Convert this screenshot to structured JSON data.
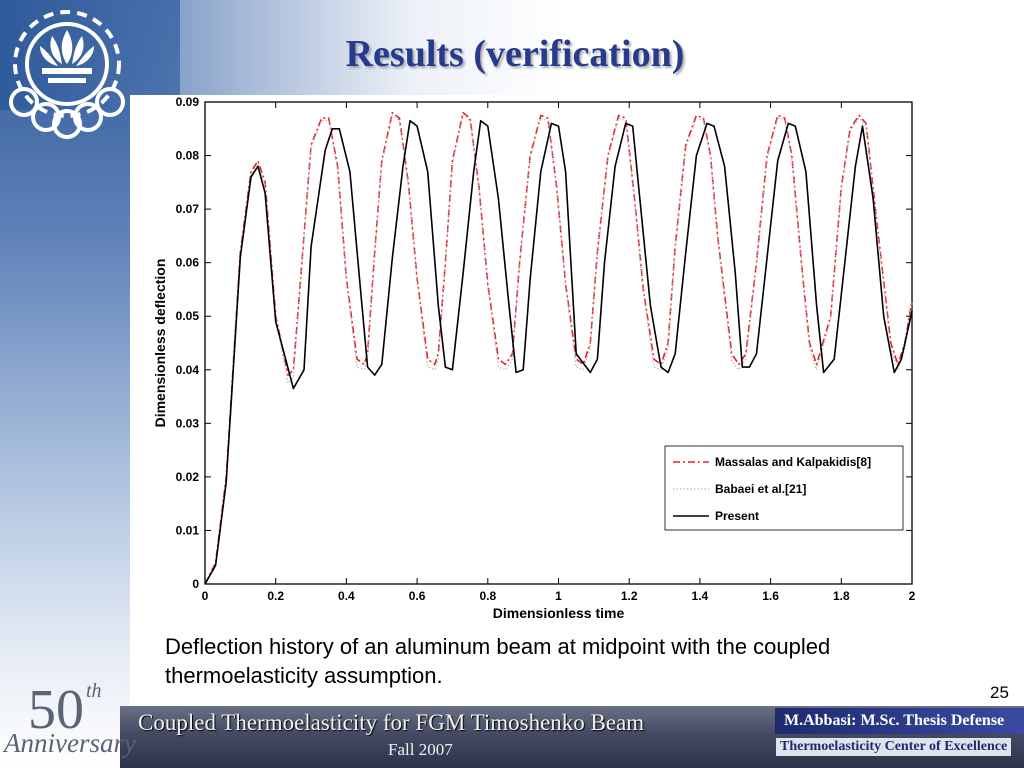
{
  "slide": {
    "title": "Results (verification)",
    "caption": "Deflection history of an aluminum beam at midpoint with the coupled thermoelasticity assumption.",
    "page_number": "25",
    "footer": {
      "title": "Coupled Thermoelasticity for FGM Timoshenko Beam",
      "date": "Fall 2007",
      "author": "M.Abbasi: M.Sc. Thesis Defense",
      "center": "Thermoelasticity Center of Excellence"
    },
    "anniversary": {
      "number": "50",
      "suffix": "th",
      "word": "Anniversary"
    },
    "colors": {
      "title": "#283a8c",
      "footer_band": "#3a4158",
      "accent": "#1f2a6e"
    }
  },
  "chart_data": {
    "type": "line",
    "title": "",
    "xlabel": "Dimensionless time",
    "ylabel": "Dimensionless deflection",
    "xlim": [
      0,
      2
    ],
    "ylim": [
      0,
      0.09
    ],
    "xticks": [
      0,
      0.2,
      0.4,
      0.6,
      0.8,
      1,
      1.2,
      1.4,
      1.6,
      1.8,
      2
    ],
    "xtick_labels": [
      "0",
      "0.2",
      "0.4",
      "0.6",
      "0.8",
      "1",
      "1.2",
      "1.4",
      "1.6",
      "1.8",
      "2"
    ],
    "yticks": [
      0,
      0.01,
      0.02,
      0.03,
      0.04,
      0.05,
      0.06,
      0.07,
      0.08,
      0.09
    ],
    "ytick_labels": [
      "0",
      "0.01",
      "0.02",
      "0.03",
      "0.04",
      "0.05",
      "0.06",
      "0.07",
      "0.08",
      "0.09"
    ],
    "grid": false,
    "legend_position": "bottom-right",
    "series": [
      {
        "name": "Massalas and Kalpakidis[8]",
        "style": "dash-dot",
        "color": "#e8202a",
        "x": [
          0,
          0.03,
          0.06,
          0.1,
          0.13,
          0.15,
          0.17,
          0.2,
          0.235,
          0.25,
          0.28,
          0.3,
          0.33,
          0.35,
          0.375,
          0.4,
          0.43,
          0.45,
          0.46,
          0.48,
          0.5,
          0.53,
          0.55,
          0.575,
          0.6,
          0.63,
          0.65,
          0.66,
          0.68,
          0.7,
          0.73,
          0.75,
          0.775,
          0.8,
          0.83,
          0.85,
          0.87,
          0.89,
          0.92,
          0.95,
          0.97,
          0.995,
          1.02,
          1.05,
          1.07,
          1.09,
          1.11,
          1.14,
          1.17,
          1.19,
          1.215,
          1.24,
          1.27,
          1.29,
          1.31,
          1.33,
          1.36,
          1.39,
          1.41,
          1.43,
          1.45,
          1.49,
          1.51,
          1.53,
          1.56,
          1.59,
          1.62,
          1.64,
          1.66,
          1.69,
          1.71,
          1.73,
          1.77,
          1.8,
          1.825,
          1.85,
          1.87,
          1.9,
          1.94,
          1.96,
          1.98,
          2
        ],
        "y": [
          0,
          0.004,
          0.02,
          0.062,
          0.077,
          0.079,
          0.075,
          0.05,
          0.039,
          0.04,
          0.065,
          0.082,
          0.087,
          0.087,
          0.078,
          0.057,
          0.042,
          0.041,
          0.043,
          0.062,
          0.079,
          0.088,
          0.087,
          0.075,
          0.057,
          0.042,
          0.041,
          0.043,
          0.06,
          0.079,
          0.088,
          0.087,
          0.074,
          0.056,
          0.042,
          0.041,
          0.043,
          0.06,
          0.08,
          0.0875,
          0.087,
          0.074,
          0.056,
          0.042,
          0.041,
          0.045,
          0.062,
          0.08,
          0.0875,
          0.087,
          0.072,
          0.055,
          0.042,
          0.041,
          0.045,
          0.063,
          0.082,
          0.0875,
          0.087,
          0.08,
          0.065,
          0.043,
          0.041,
          0.043,
          0.06,
          0.08,
          0.0875,
          0.087,
          0.08,
          0.058,
          0.045,
          0.041,
          0.05,
          0.074,
          0.085,
          0.0875,
          0.086,
          0.068,
          0.045,
          0.041,
          0.045,
          0.053
        ]
      },
      {
        "name": "Babaei et al.[21]",
        "style": "dotted",
        "color": "#b8b8b8",
        "x": [
          0,
          0.03,
          0.06,
          0.1,
          0.13,
          0.15,
          0.17,
          0.2,
          0.235,
          0.25,
          0.28,
          0.3,
          0.33,
          0.35,
          0.375,
          0.4,
          0.43,
          0.45,
          0.46,
          0.48,
          0.5,
          0.53,
          0.55,
          0.575,
          0.6,
          0.63,
          0.65,
          0.66,
          0.68,
          0.7,
          0.73,
          0.75,
          0.775,
          0.8,
          0.83,
          0.85,
          0.87,
          0.89,
          0.92,
          0.95,
          0.97,
          0.995,
          1.02,
          1.05,
          1.07,
          1.09,
          1.11,
          1.14,
          1.17,
          1.19,
          1.215,
          1.24,
          1.27,
          1.29,
          1.31,
          1.33,
          1.36,
          1.39,
          1.41,
          1.43,
          1.45,
          1.49,
          1.51,
          1.53,
          1.56,
          1.59,
          1.62,
          1.64,
          1.66,
          1.69,
          1.71,
          1.73,
          1.77,
          1.8,
          1.825,
          1.85,
          1.87,
          1.9,
          1.94,
          1.96,
          1.98,
          2
        ],
        "y": [
          0,
          0.0038,
          0.0195,
          0.0615,
          0.0765,
          0.0785,
          0.0745,
          0.0495,
          0.0375,
          0.0385,
          0.0645,
          0.0815,
          0.0865,
          0.0865,
          0.0775,
          0.0565,
          0.0405,
          0.04,
          0.042,
          0.0615,
          0.0785,
          0.0875,
          0.0865,
          0.0745,
          0.0565,
          0.0405,
          0.04,
          0.042,
          0.0595,
          0.0785,
          0.0875,
          0.0865,
          0.0735,
          0.0555,
          0.0405,
          0.04,
          0.042,
          0.0595,
          0.0795,
          0.087,
          0.0865,
          0.0735,
          0.0555,
          0.0405,
          0.04,
          0.044,
          0.0615,
          0.0795,
          0.087,
          0.0865,
          0.0715,
          0.0545,
          0.0405,
          0.04,
          0.044,
          0.0625,
          0.0815,
          0.087,
          0.0865,
          0.0795,
          0.0645,
          0.0415,
          0.04,
          0.042,
          0.0595,
          0.0795,
          0.087,
          0.0865,
          0.0795,
          0.0575,
          0.044,
          0.04,
          0.0495,
          0.0735,
          0.0845,
          0.087,
          0.0855,
          0.0675,
          0.044,
          0.04,
          0.044,
          0.0525
        ]
      },
      {
        "name": "Present",
        "style": "solid",
        "color": "#000000",
        "x": [
          0,
          0.03,
          0.06,
          0.1,
          0.13,
          0.15,
          0.17,
          0.2,
          0.25,
          0.28,
          0.3,
          0.34,
          0.36,
          0.38,
          0.41,
          0.44,
          0.46,
          0.48,
          0.5,
          0.53,
          0.56,
          0.58,
          0.6,
          0.63,
          0.66,
          0.68,
          0.7,
          0.73,
          0.76,
          0.78,
          0.8,
          0.83,
          0.86,
          0.88,
          0.9,
          0.92,
          0.95,
          0.98,
          1,
          1.02,
          1.05,
          1.09,
          1.11,
          1.13,
          1.16,
          1.19,
          1.21,
          1.23,
          1.26,
          1.29,
          1.31,
          1.33,
          1.36,
          1.39,
          1.42,
          1.44,
          1.47,
          1.5,
          1.52,
          1.54,
          1.56,
          1.59,
          1.62,
          1.65,
          1.67,
          1.7,
          1.73,
          1.75,
          1.78,
          1.81,
          1.84,
          1.86,
          1.89,
          1.92,
          1.95,
          1.97,
          2
        ],
        "y": [
          0,
          0.0035,
          0.019,
          0.061,
          0.076,
          0.078,
          0.073,
          0.049,
          0.0365,
          0.04,
          0.063,
          0.081,
          0.085,
          0.085,
          0.077,
          0.055,
          0.0405,
          0.039,
          0.041,
          0.061,
          0.078,
          0.0865,
          0.0855,
          0.077,
          0.052,
          0.0405,
          0.04,
          0.058,
          0.077,
          0.0865,
          0.0855,
          0.072,
          0.052,
          0.0395,
          0.04,
          0.057,
          0.077,
          0.086,
          0.0855,
          0.077,
          0.043,
          0.0395,
          0.042,
          0.06,
          0.078,
          0.086,
          0.0855,
          0.072,
          0.052,
          0.0405,
          0.0395,
          0.043,
          0.062,
          0.08,
          0.086,
          0.0855,
          0.078,
          0.058,
          0.0405,
          0.0405,
          0.043,
          0.061,
          0.079,
          0.086,
          0.0855,
          0.077,
          0.052,
          0.0395,
          0.042,
          0.06,
          0.078,
          0.0855,
          0.072,
          0.05,
          0.0395,
          0.042,
          0.051
        ]
      }
    ]
  }
}
